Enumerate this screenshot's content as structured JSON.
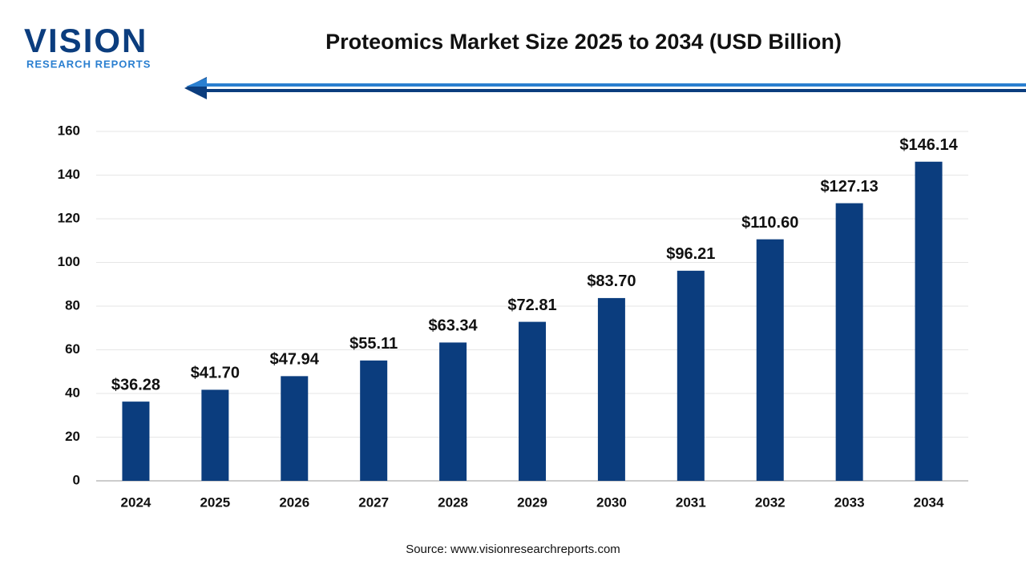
{
  "logo": {
    "name": "VISION",
    "tagline": "RESEARCH REPORTS"
  },
  "chart_data": {
    "type": "bar",
    "title": "Proteomics Market Size 2025 to 2034 (USD Billion)",
    "categories": [
      "2024",
      "2025",
      "2026",
      "2027",
      "2028",
      "2029",
      "2030",
      "2031",
      "2032",
      "2033",
      "2034"
    ],
    "values": [
      36.28,
      41.7,
      47.94,
      55.11,
      63.34,
      72.81,
      83.7,
      96.21,
      110.6,
      127.13,
      146.14
    ],
    "value_labels": [
      "$36.28",
      "$41.70",
      "$47.94",
      "$55.11",
      "$63.34",
      "$72.81",
      "$83.70",
      "$96.21",
      "$110.60",
      "$127.13",
      "$146.14"
    ],
    "color": "#0b3d7e",
    "ylim": [
      0,
      160
    ],
    "yticks": [
      0,
      20,
      40,
      60,
      80,
      100,
      120,
      140,
      160
    ],
    "grid": true,
    "source": "Source: www.visionresearchreports.com"
  }
}
